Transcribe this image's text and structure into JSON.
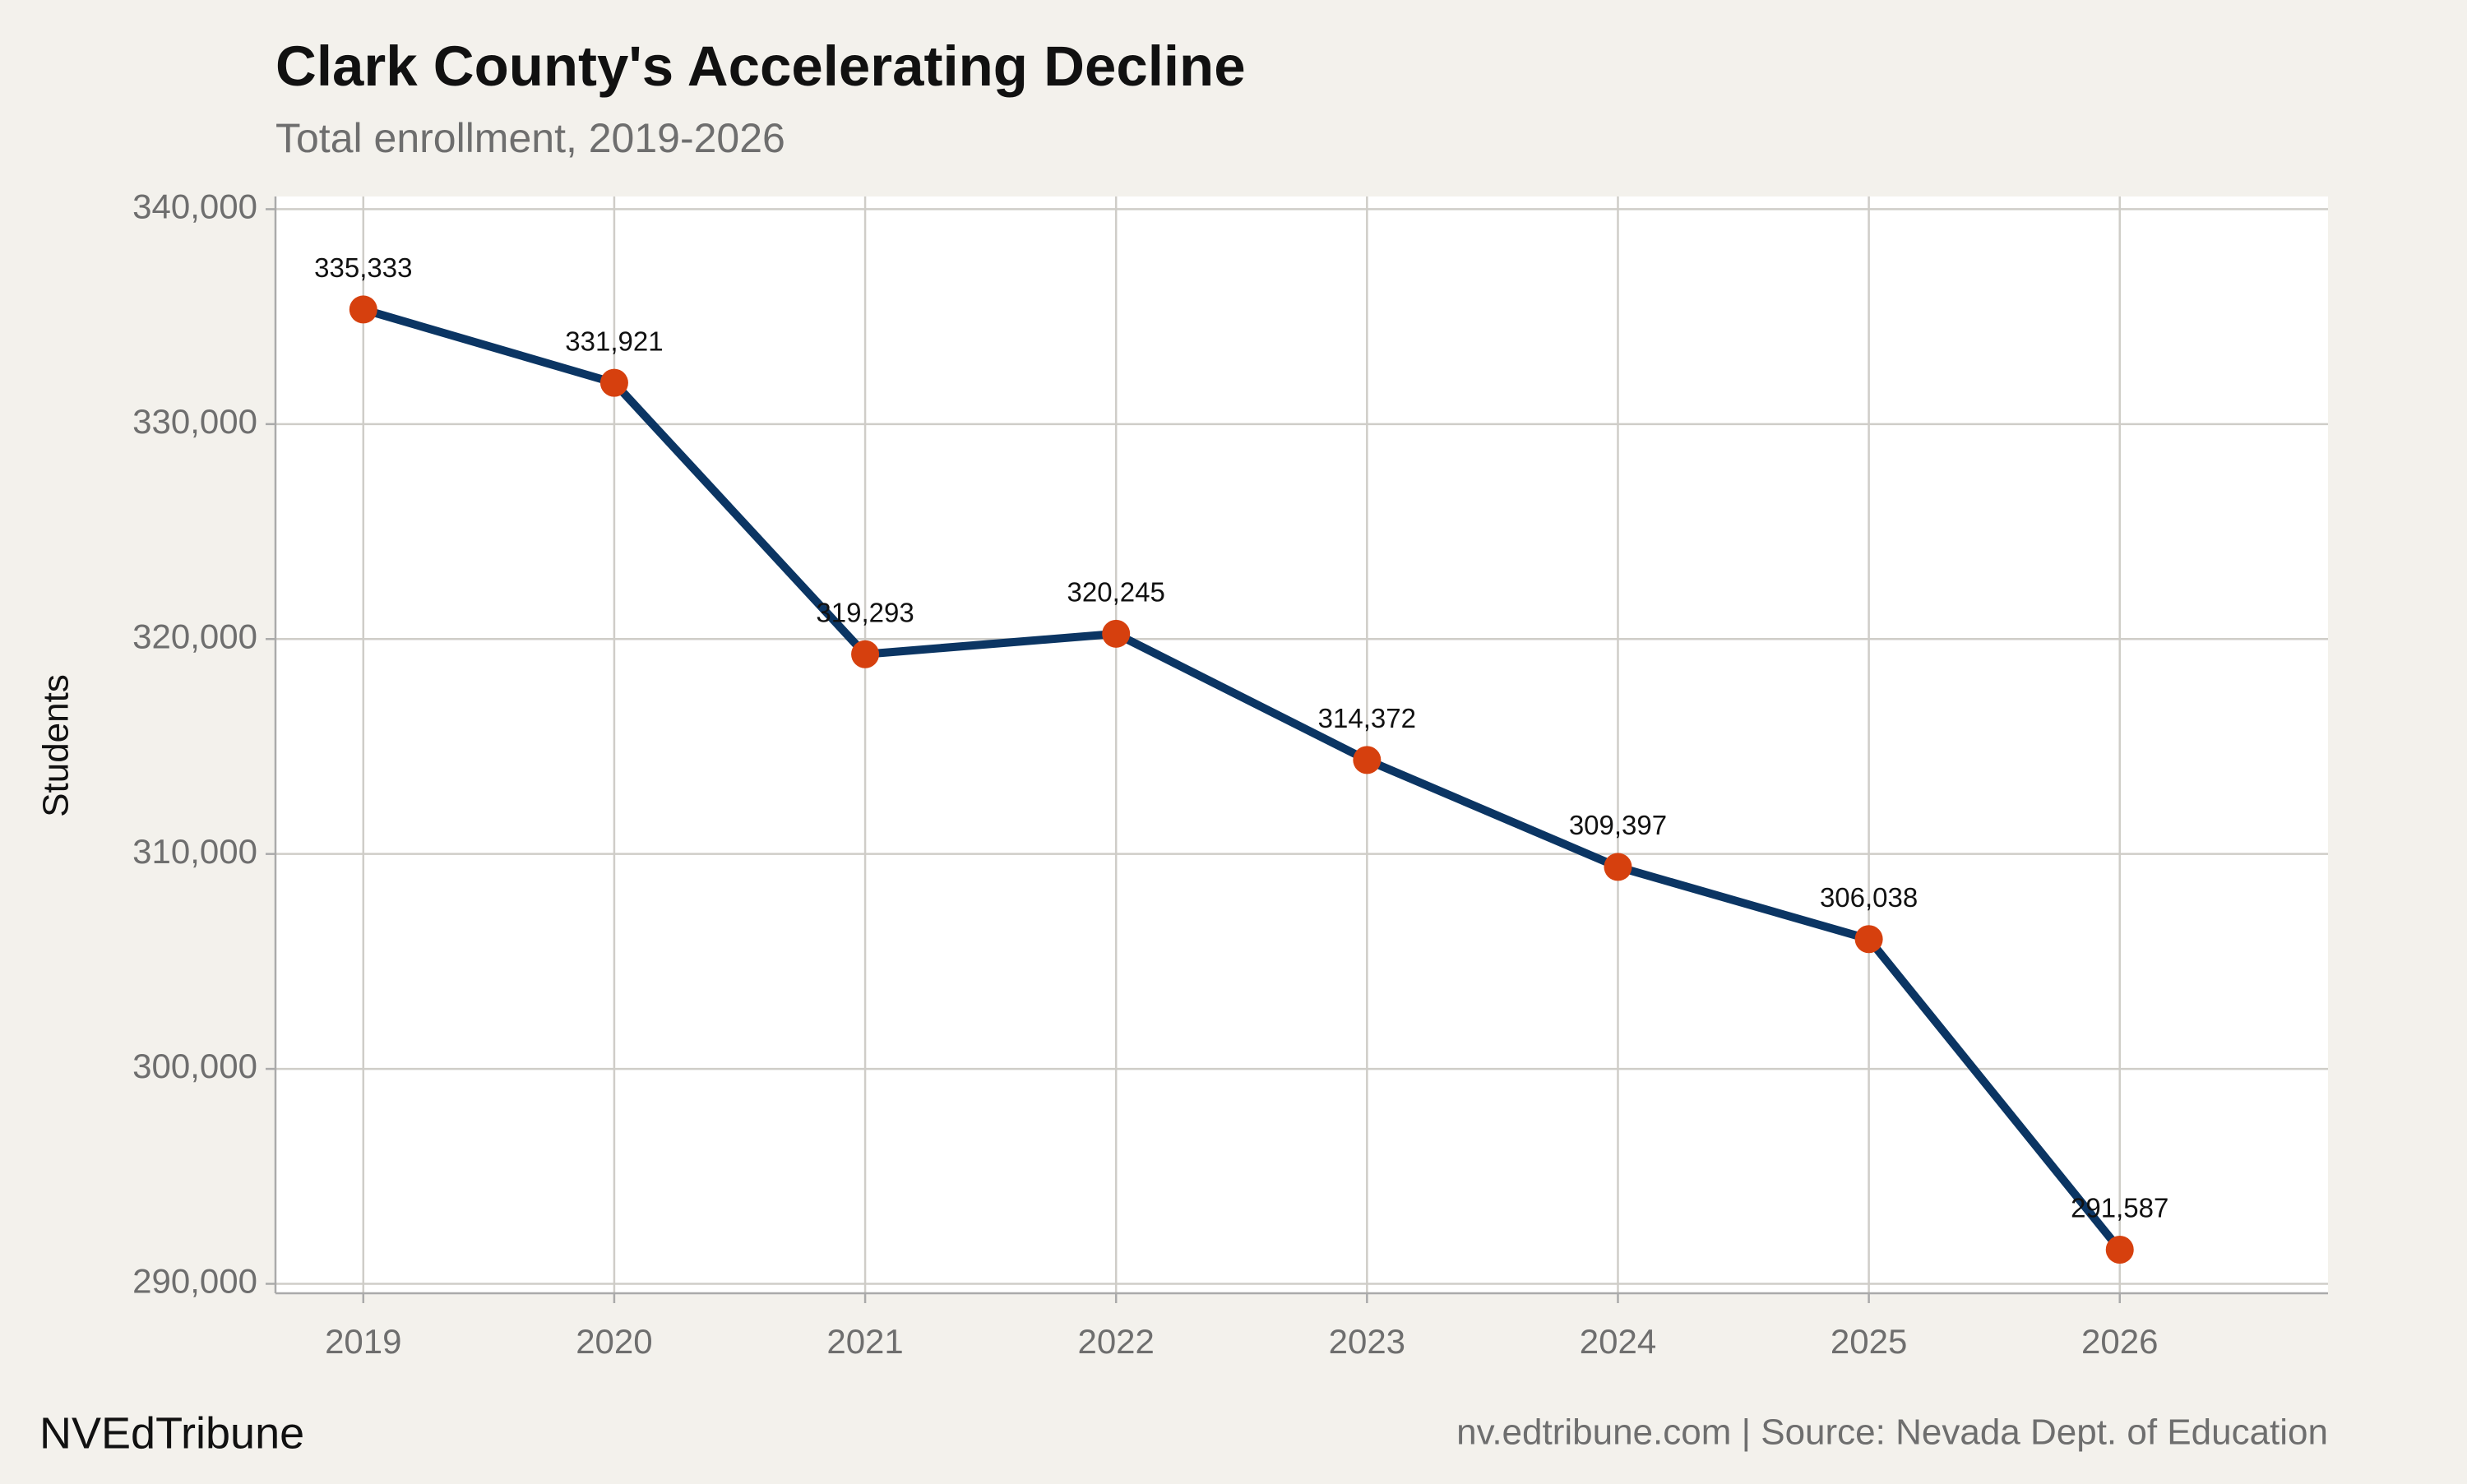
{
  "chart_data": {
    "type": "line",
    "title": "Clark County's Accelerating Decline",
    "subtitle": "Total enrollment, 2019-2026",
    "y_label": "Students",
    "x": [
      2019,
      2020,
      2021,
      2022,
      2023,
      2024,
      2025,
      2026
    ],
    "values": [
      335333,
      331921,
      319293,
      320245,
      314372,
      309397,
      306038,
      291587
    ],
    "value_labels": [
      "335,333",
      "331,921",
      "319,293",
      "320,245",
      "314,372",
      "309,397",
      "306,038",
      "291,587"
    ],
    "color": "#0b3563",
    "marker_color": "#d6400e",
    "xlim": [
      2018.65,
      2026.83
    ],
    "xticks": [
      2019,
      2020,
      2021,
      2022,
      2023,
      2024,
      2025,
      2026
    ],
    "ylim": [
      289560,
      340590
    ],
    "yticks": [
      {
        "value": 290000,
        "label": "290,000"
      },
      {
        "value": 300000,
        "label": "300,000"
      },
      {
        "value": 310000,
        "label": "310,000"
      },
      {
        "value": 320000,
        "label": "320,000"
      },
      {
        "value": 330000,
        "label": "330,000"
      },
      {
        "value": 340000,
        "label": "340,000"
      }
    ],
    "grid": true,
    "brand": "NVEdTribune",
    "source": "nv.edtribune.com | Source: Nevada Dept. of Education"
  }
}
